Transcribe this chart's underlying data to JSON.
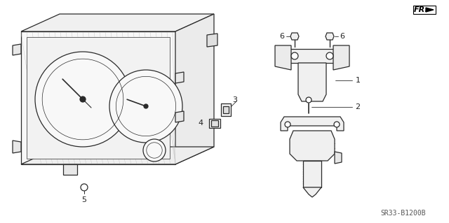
{
  "background_color": "#ffffff",
  "diagram_code": "SR33-B1200B",
  "line_color": "#2a2a2a",
  "text_color": "#222222",
  "font_size_label": 8,
  "font_size_code": 7,
  "fr_fontsize": 8
}
